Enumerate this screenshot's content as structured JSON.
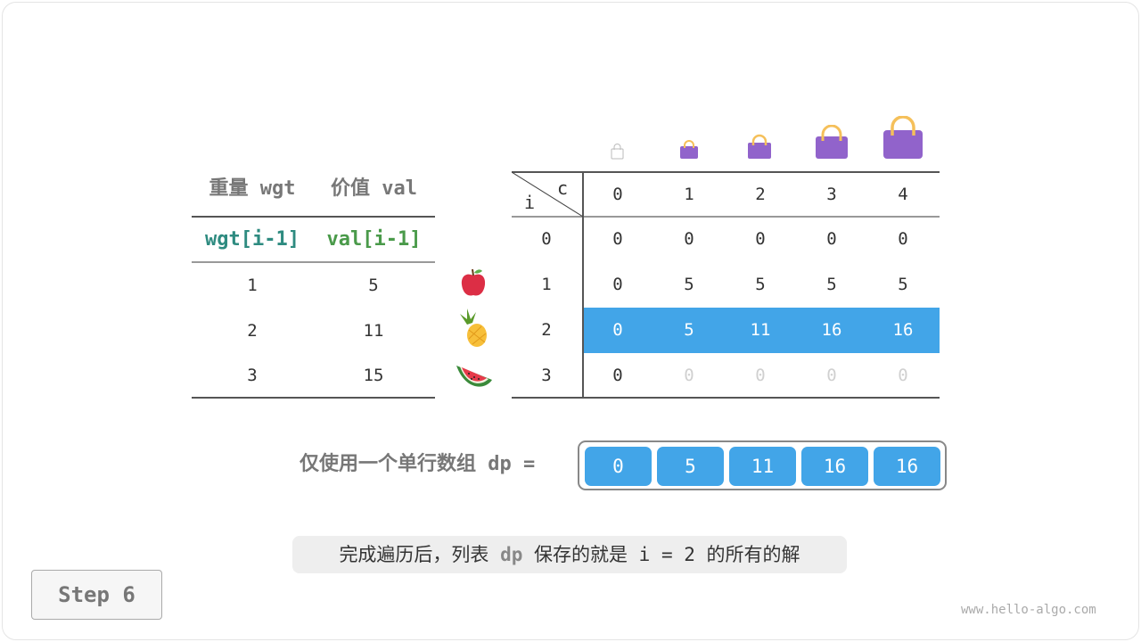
{
  "left_table": {
    "headers": [
      "重量 wgt",
      "价值 val"
    ],
    "subheaders": [
      "wgt[i-1]",
      "val[i-1]"
    ],
    "rows": [
      [
        "1",
        "5"
      ],
      [
        "2",
        "11"
      ],
      [
        "3",
        "15"
      ]
    ],
    "items": [
      "apple-icon",
      "pineapple-icon",
      "watermelon-icon"
    ]
  },
  "dp_table": {
    "corner_row_label": "i",
    "corner_col_label": "c",
    "col_headers": [
      "0",
      "1",
      "2",
      "3",
      "4"
    ],
    "row_headers": [
      "0",
      "1",
      "2",
      "3"
    ],
    "rows": [
      [
        "0",
        "0",
        "0",
        "0",
        "0"
      ],
      [
        "0",
        "5",
        "5",
        "5",
        "5"
      ],
      [
        "0",
        "5",
        "11",
        "16",
        "16"
      ],
      [
        "0",
        "0",
        "0",
        "0",
        "0"
      ]
    ],
    "highlight_row": 2,
    "highlight_color": "#42a5e8",
    "faded_cells_row3": [
      false,
      true,
      true,
      true,
      true
    ]
  },
  "dp_array": {
    "label": "仅使用一个单行数组 dp =",
    "values": [
      "0",
      "5",
      "11",
      "16",
      "16"
    ]
  },
  "caption": {
    "pre": "完成遍历后，列表 ",
    "code": "dp",
    "post": " 保存的就是 i = 2 的所有的解"
  },
  "step_button": "Step 6",
  "watermark": "www.hello-algo.com",
  "colors": {
    "wgt": "#2e8b80",
    "val": "#4a9a4a",
    "bag": "#9163cb",
    "handle": "#f5c05a"
  }
}
